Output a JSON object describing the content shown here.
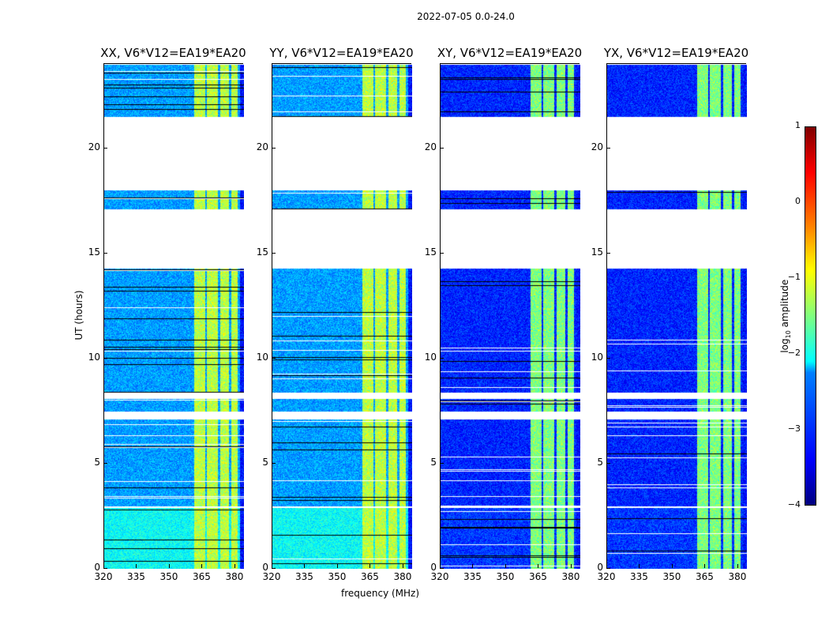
{
  "chart_data": {
    "type": "heatmap",
    "title": "2022-07-05 0.0-24.0",
    "xlabel": "frequency (MHz)",
    "ylabel": "UT (hours)",
    "xlim": [
      320,
      384
    ],
    "ylim": [
      0,
      24
    ],
    "xticks": [
      "320",
      "335",
      "350",
      "365",
      "380"
    ],
    "xtick_values": [
      320,
      335,
      350,
      365,
      380
    ],
    "yticks": [
      "0",
      "5",
      "10",
      "15",
      "20"
    ],
    "ytick_values": [
      0,
      5,
      10,
      15,
      20
    ],
    "colorbar": {
      "label": "log10 amplitude",
      "label_main": "log",
      "label_sub": "10",
      "label_rest": " amplitude",
      "range": [
        -4,
        1
      ],
      "ticks": [
        "1",
        "0",
        "−1",
        "−2",
        "−3",
        "−4"
      ],
      "tick_values": [
        1,
        0,
        -1,
        -2,
        -3,
        -4
      ],
      "colormap": "jet"
    },
    "data_segments_hours": [
      [
        0,
        2.9
      ],
      [
        3.0,
        7.1
      ],
      [
        7.5,
        8.1
      ],
      [
        8.4,
        14.3
      ],
      [
        17.1,
        18.0
      ],
      [
        21.5,
        24
      ]
    ],
    "rfi_bands_mhz": [
      [
        361,
        366
      ],
      [
        367,
        372
      ],
      [
        373,
        377
      ],
      [
        378,
        381
      ]
    ],
    "panels": [
      {
        "title": "XX, V6*V12=EA19*EA20",
        "background_level": -2.6,
        "early_level": -2.1,
        "rfi_level": -1.2
      },
      {
        "title": "YY, V6*V12=EA19*EA20",
        "background_level": -2.6,
        "early_level": -2.1,
        "rfi_level": -1.2
      },
      {
        "title": "XY, V6*V12=EA19*EA20",
        "background_level": -3.2,
        "early_level": -3.1,
        "rfi_level": -1.5
      },
      {
        "title": "YX, V6*V12=EA19*EA20",
        "background_level": -3.2,
        "early_level": -3.1,
        "rfi_level": -1.5
      }
    ]
  }
}
